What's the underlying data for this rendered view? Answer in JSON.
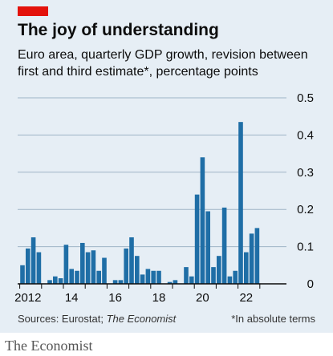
{
  "colors": {
    "bar": "#1f6ea6",
    "grid": "#9fb4c6",
    "axis": "#0c0c0c",
    "accent": "#e3120b",
    "background": "#e6eef5"
  },
  "header": {
    "title": "The joy of understanding",
    "subtitle": "Euro area, quarterly GDP growth, revision between first and third estimate*, percentage points"
  },
  "footer": {
    "source_prefix": "Sources: Eurostat; ",
    "source_italic": "The Economist",
    "footnote": "*In absolute terms"
  },
  "brand": "The Economist",
  "chart_data": {
    "type": "bar",
    "title": "The joy of understanding",
    "subtitle": "Euro area, quarterly GDP growth, revision between first and third estimate*, percentage points",
    "ylim": [
      0,
      0.5
    ],
    "yticks": [
      0,
      0.1,
      0.2,
      0.3,
      0.4,
      0.5
    ],
    "ytick_labels": [
      "0",
      "0.1",
      "0.2",
      "0.3",
      "0.4",
      "0.5"
    ],
    "y_axis_position": "right",
    "grid": true,
    "xlim": [
      "2012 Q1",
      "2023 Q1"
    ],
    "xtick_labels": [
      {
        "label": "2012",
        "year": 2012
      },
      {
        "label": "14",
        "year": 2014
      },
      {
        "label": "16",
        "year": 2016
      },
      {
        "label": "18",
        "year": 2018
      },
      {
        "label": "20",
        "year": 2020
      },
      {
        "label": "22",
        "year": 2022
      }
    ],
    "categories": [
      "2012 Q1",
      "2012 Q2",
      "2012 Q3",
      "2012 Q4",
      "2013 Q1",
      "2013 Q2",
      "2013 Q3",
      "2013 Q4",
      "2014 Q1",
      "2014 Q2",
      "2014 Q3",
      "2014 Q4",
      "2015 Q1",
      "2015 Q2",
      "2015 Q3",
      "2015 Q4",
      "2016 Q1",
      "2016 Q2",
      "2016 Q3",
      "2016 Q4",
      "2017 Q1",
      "2017 Q2",
      "2017 Q3",
      "2017 Q4",
      "2018 Q1",
      "2018 Q2",
      "2018 Q3",
      "2018 Q4",
      "2019 Q1",
      "2019 Q2",
      "2019 Q3",
      "2019 Q4",
      "2020 Q1",
      "2020 Q2",
      "2020 Q3",
      "2020 Q4",
      "2021 Q1",
      "2021 Q2",
      "2021 Q3",
      "2021 Q4",
      "2022 Q1",
      "2022 Q2",
      "2022 Q3",
      "2022 Q4"
    ],
    "values": [
      0.05,
      0.095,
      0.125,
      0.085,
      0.0,
      0.01,
      0.02,
      0.015,
      0.105,
      0.04,
      0.035,
      0.11,
      0.085,
      0.09,
      0.035,
      0.07,
      0.0,
      0.01,
      0.01,
      0.095,
      0.125,
      0.075,
      0.025,
      0.04,
      0.035,
      0.035,
      0.0,
      0.005,
      0.01,
      0.0,
      0.045,
      0.02,
      0.24,
      0.34,
      0.195,
      0.045,
      0.075,
      0.205,
      0.02,
      0.035,
      0.435,
      0.085,
      0.135,
      0.15
    ]
  }
}
